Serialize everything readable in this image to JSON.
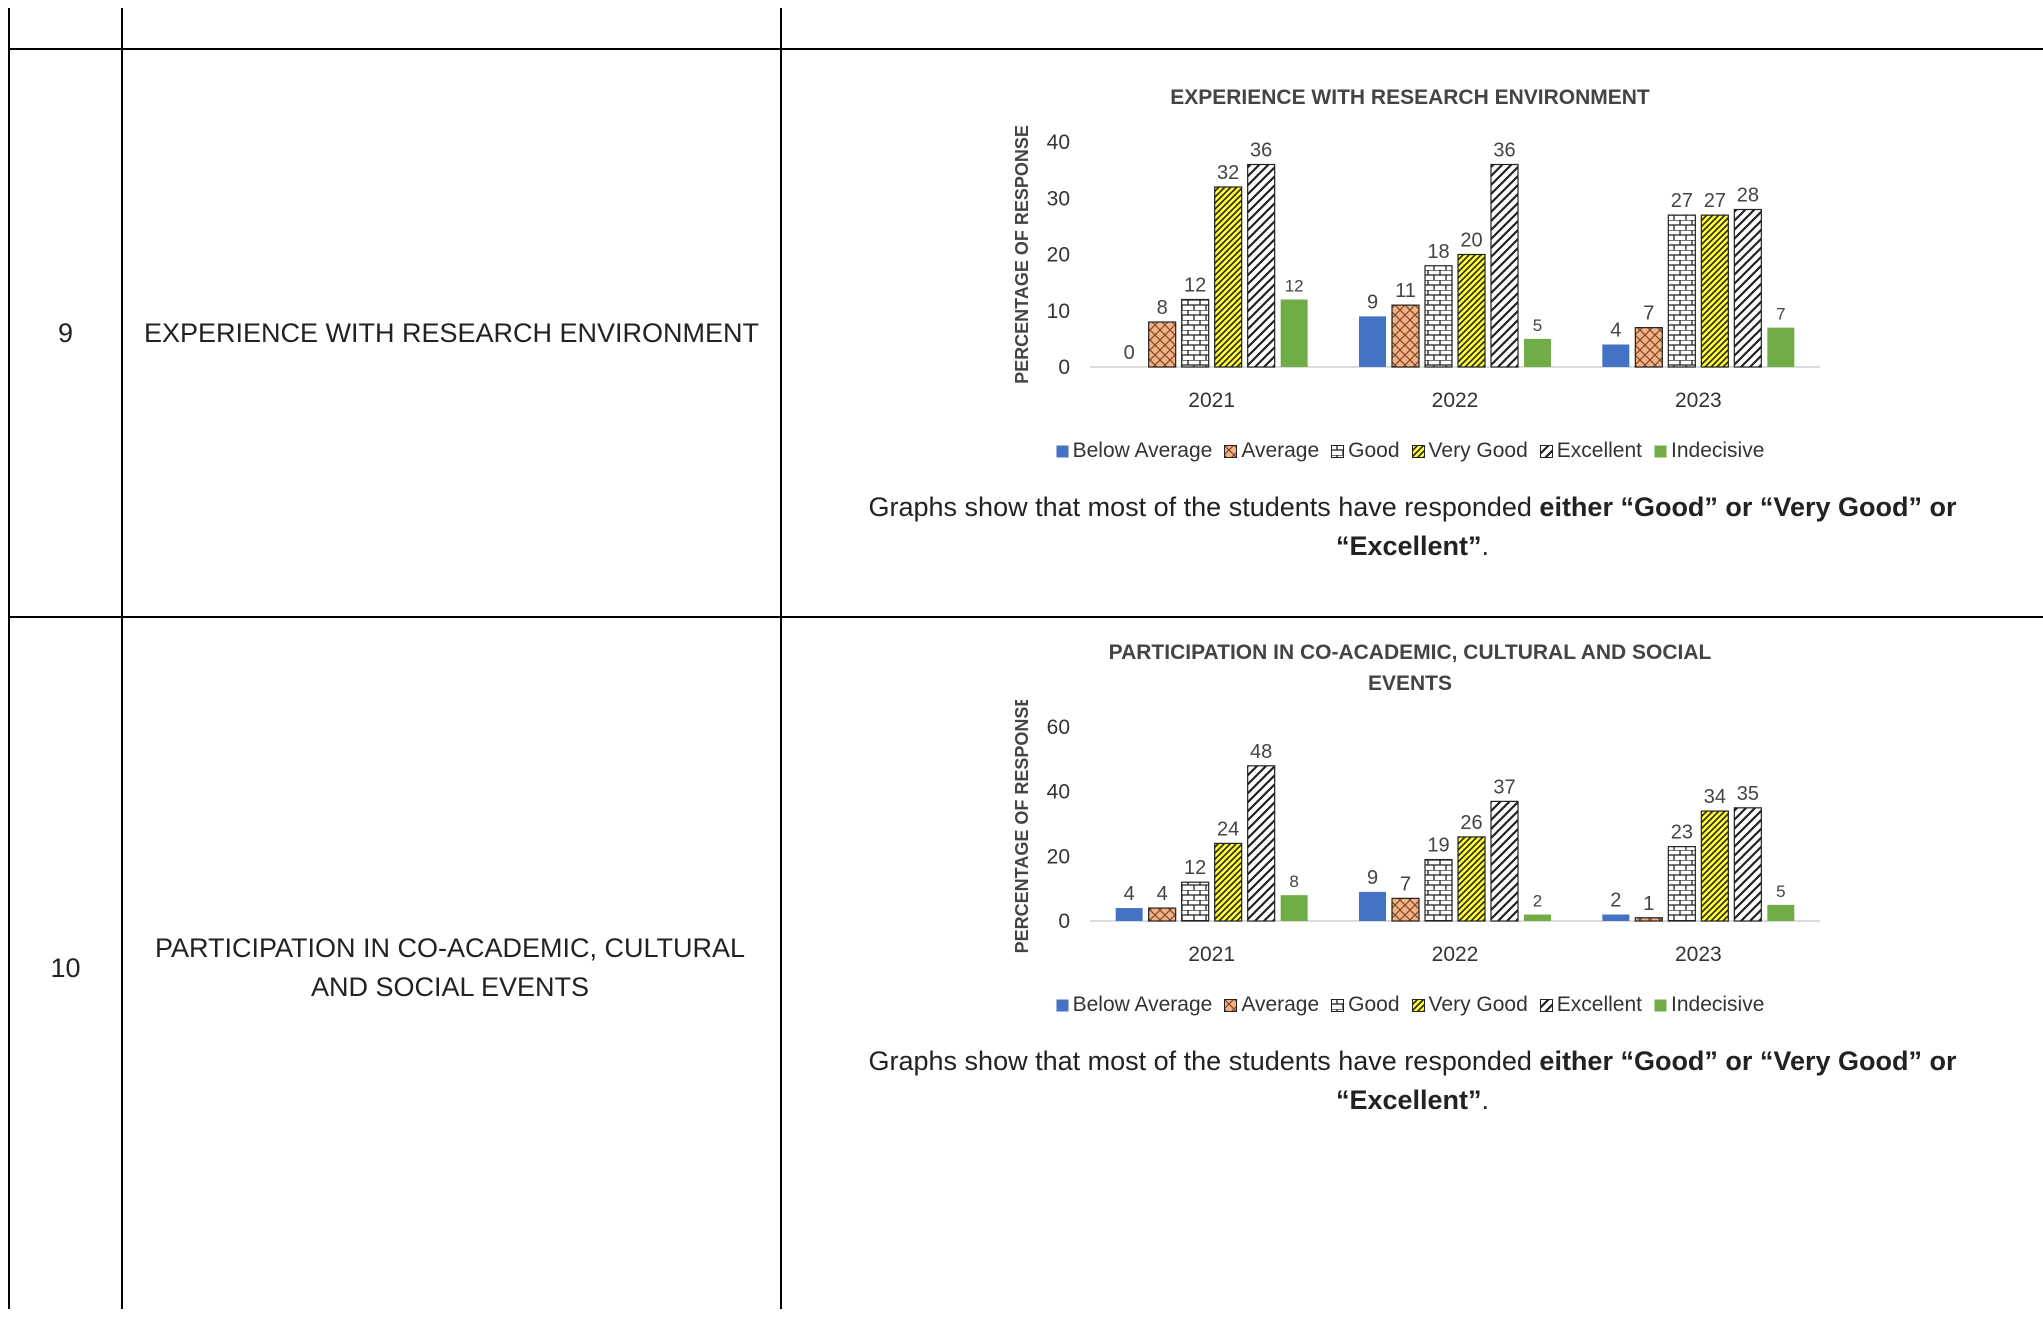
{
  "rows": [
    {
      "number": "9",
      "parameter": "EXPERIENCE WITH RESEARCH ENVIRONMENT",
      "caption_plain": "Graphs show that most of the students have responded ",
      "caption_bold": "either “Good” or “Very Good” or “Excellent”",
      "caption_end": "."
    },
    {
      "number": "10",
      "parameter": "PARTICIPATION IN CO-ACADEMIC, CULTURAL AND SOCIAL EVENTS",
      "caption_plain": "Graphs show that most of the students have responded ",
      "caption_bold": "either “Good” or “Very Good” or “Excellent”",
      "caption_end": "."
    }
  ],
  "legend": [
    {
      "label": "Below Average",
      "color": "#4472C4",
      "pattern": "solid"
    },
    {
      "label": "Average",
      "color": "#F4B183",
      "pattern": "cross"
    },
    {
      "label": "Good",
      "color": "#ffffff",
      "pattern": "brick"
    },
    {
      "label": "Very Good",
      "color": "#FFFF33",
      "pattern": "diag"
    },
    {
      "label": "Excellent",
      "color": "#ffffff",
      "pattern": "wdiag"
    },
    {
      "label": "Indecisive",
      "color": "#70AD47",
      "pattern": "solid"
    }
  ],
  "chart_data": [
    {
      "type": "bar",
      "title": "EXPERIENCE WITH RESEARCH ENVIRONMENT",
      "ylabel": "PERCENTAGE OF RESPONSE",
      "xlabel": "",
      "categories": [
        "2021",
        "2022",
        "2023"
      ],
      "yticks": [
        0,
        10,
        20,
        30,
        40
      ],
      "ylim": [
        0,
        40
      ],
      "series": [
        {
          "name": "Below Average",
          "values": [
            0,
            9,
            4
          ]
        },
        {
          "name": "Average",
          "values": [
            8,
            11,
            7
          ]
        },
        {
          "name": "Good",
          "values": [
            12,
            18,
            27
          ]
        },
        {
          "name": "Very Good",
          "values": [
            32,
            20,
            27
          ]
        },
        {
          "name": "Excellent",
          "values": [
            36,
            36,
            28
          ]
        },
        {
          "name": "Indecisive",
          "values": [
            12,
            5,
            7
          ]
        }
      ],
      "legend_position": "bottom"
    },
    {
      "type": "bar",
      "title": "PARTICIPATION IN CO-ACADEMIC, CULTURAL AND SOCIAL EVENTS",
      "ylabel": "PERCENTAGE OF RESPONSE",
      "xlabel": "",
      "categories": [
        "2021",
        "2022",
        "2023"
      ],
      "yticks": [
        0,
        20,
        40,
        60
      ],
      "ylim": [
        0,
        60
      ],
      "series": [
        {
          "name": "Below Average",
          "values": [
            4,
            9,
            2
          ]
        },
        {
          "name": "Average",
          "values": [
            4,
            7,
            1
          ]
        },
        {
          "name": "Good",
          "values": [
            12,
            19,
            23
          ]
        },
        {
          "name": "Very Good",
          "values": [
            24,
            26,
            34
          ]
        },
        {
          "name": "Excellent",
          "values": [
            48,
            37,
            35
          ]
        },
        {
          "name": "Indecisive",
          "values": [
            8,
            2,
            5
          ]
        }
      ],
      "legend_position": "bottom"
    }
  ]
}
